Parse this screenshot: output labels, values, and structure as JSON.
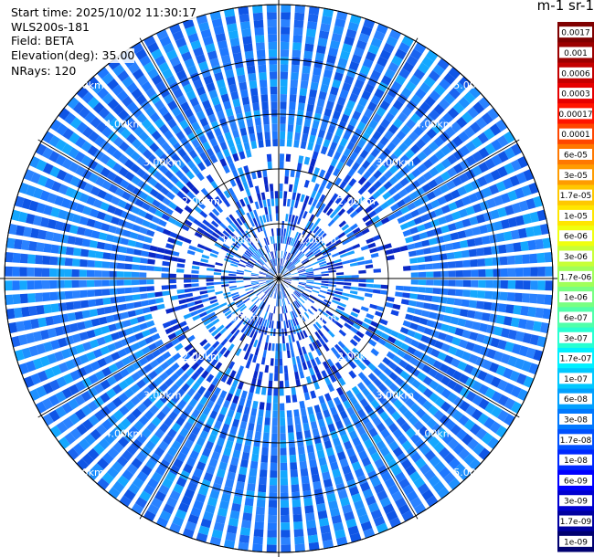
{
  "header": {
    "start_time": "Start time: 2025/10/02 11:30:17",
    "instrument": "WLS200s-181",
    "field": "Field: BETA",
    "elevation": "Elevation(deg): 35.00",
    "nrays": "NRays: 120"
  },
  "colorbar": {
    "unit_label": "m-1 sr-1",
    "labels": [
      "0.0017",
      "0.001",
      "0.0006",
      "0.0003",
      "0.00017",
      "0.0001",
      "6e-05",
      "3e-05",
      "1.7e-05",
      "1e-05",
      "6e-06",
      "3e-06",
      "1.7e-06",
      "1e-06",
      "6e-07",
      "3e-07",
      "1.7e-07",
      "1e-07",
      "6e-08",
      "3e-08",
      "1.7e-08",
      "1e-08",
      "6e-09",
      "3e-09",
      "1.7e-09",
      "1e-09"
    ],
    "colors": [
      "#7f0000",
      "#9c0000",
      "#c40000",
      "#e60000",
      "#ff1400",
      "#ff4600",
      "#ff7800",
      "#ff9c00",
      "#ffc800",
      "#ffe600",
      "#f0ff10",
      "#c8ff38",
      "#a0ff5a",
      "#78ff82",
      "#50ffaa",
      "#28ffd2",
      "#00f0ff",
      "#00c8ff",
      "#00a0ff",
      "#0078ff",
      "#0050ff",
      "#0028ff",
      "#0000ff",
      "#0000d0",
      "#0000a0",
      "#000070"
    ]
  },
  "chart_data": {
    "type": "heatmap",
    "projection": "polar-ppi",
    "n_rays": 120,
    "range_rings_km": [
      1,
      2,
      3,
      4,
      5
    ],
    "ring_labels": [
      "1.00km",
      "2.00km",
      "3.00km",
      "4.00km",
      "5.00km"
    ],
    "max_range_km": 5.0,
    "dominant_value_range": [
      "3e-08",
      "1e-07"
    ],
    "near_range_value_range": [
      "1e-08",
      "3e-08"
    ],
    "grid": true
  }
}
